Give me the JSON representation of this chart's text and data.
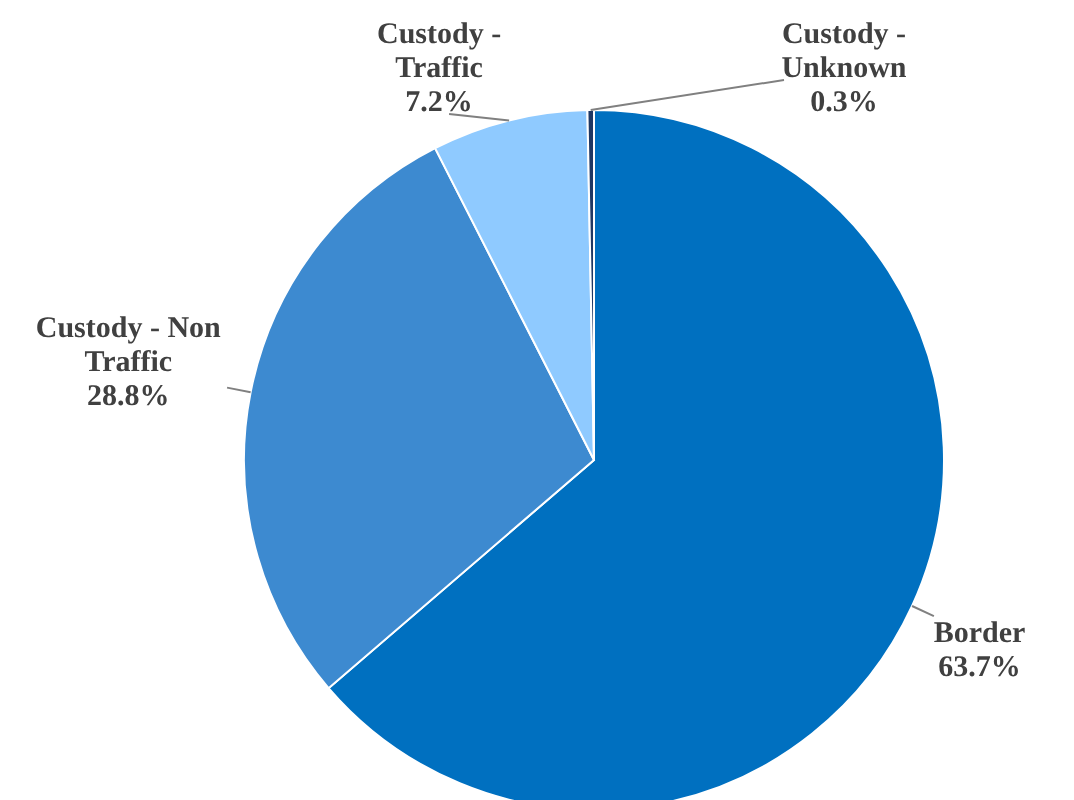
{
  "chart_data": {
    "type": "pie",
    "categories": [
      "Border",
      "Custody - Non Traffic",
      "Custody - Traffic",
      "Custody - Unknown"
    ],
    "values": [
      63.7,
      28.8,
      7.2,
      0.3
    ],
    "colors": [
      "#0070c0",
      "#3d8ad0",
      "#8fcaff",
      "#1f3864"
    ],
    "value_labels": [
      "63.7%",
      "28.8%",
      "7.2%",
      "0.3%"
    ],
    "legend": false
  }
}
